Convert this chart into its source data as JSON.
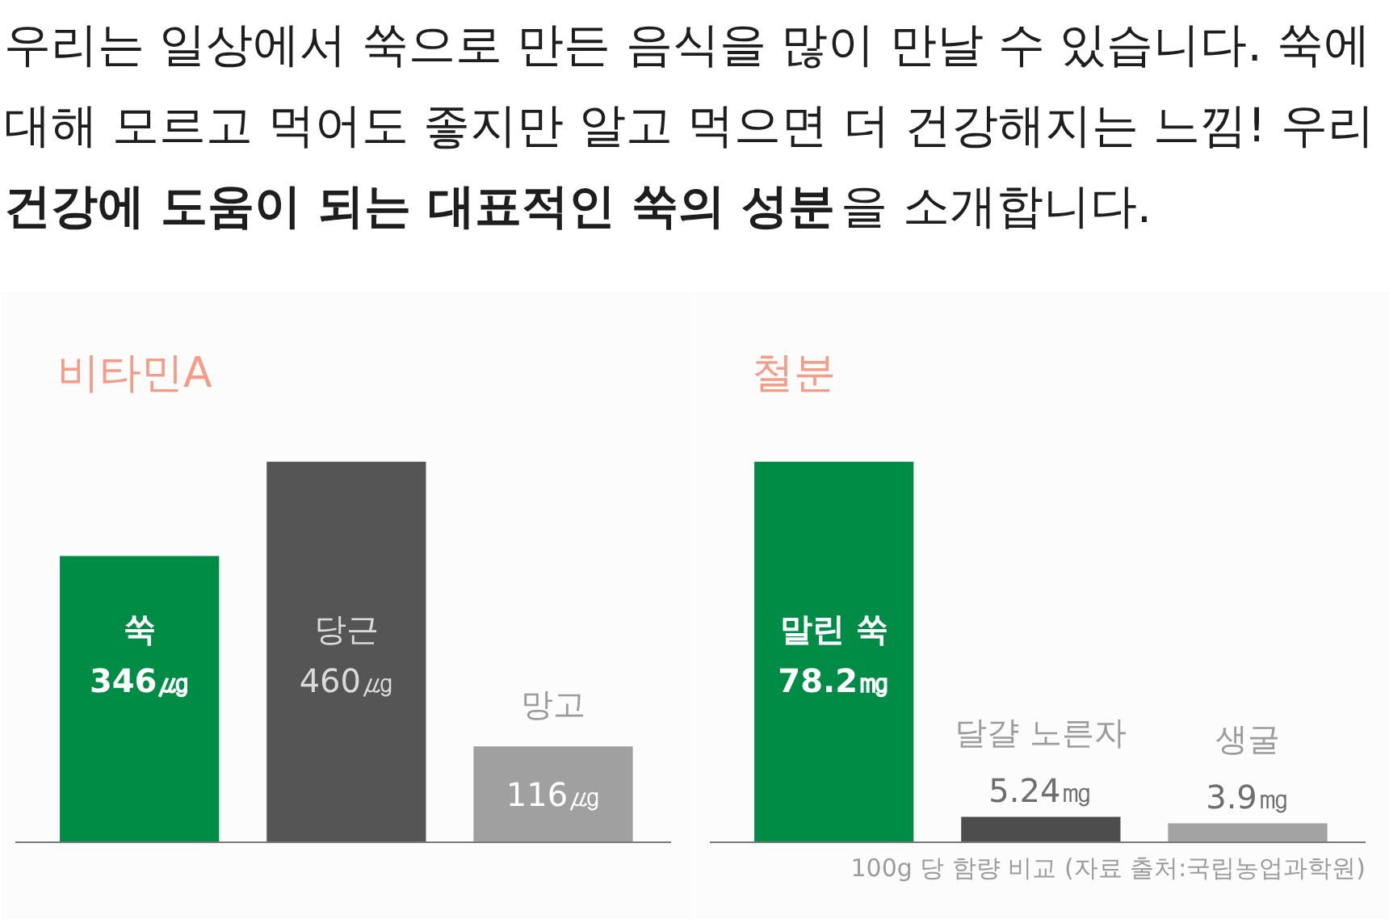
{
  "chart_data": [
    {
      "type": "other",
      "annotations": [
        "우리는 일상에서 쑥으로 만든 음식을 많이 만날 수 있습니다. 쑥에",
        "대해 모르고 먹어도 좋지만 알고 먹으면 더 건강해지는 느낌! 우리",
        "건강에 도움이 되는 대표적인 쑥의 성분",
        "을 소개합니다."
      ]
    },
    {
      "type": "bar",
      "title": "비타민A",
      "categories": [
        "쑥",
        "당근",
        "망고"
      ],
      "values": [
        346,
        460,
        116
      ],
      "colors": [
        "#008c45",
        "#555555",
        "#a0a0a0"
      ],
      "value_labels": [
        "346㎍",
        "460㎍",
        "116㎍"
      ],
      "tick_labels": false
    },
    {
      "type": "bar",
      "title": "철분",
      "categories": [
        "말린 쑥",
        "달걀 노른자",
        "생굴"
      ],
      "values": [
        78.2,
        5.24,
        3.9
      ],
      "colors": [
        "#008c45",
        "#4d4d4d",
        "#a3a3a3"
      ],
      "value_labels": [
        "78.2㎎",
        "5.24㎎",
        "3.9㎎"
      ],
      "tick_labels": false,
      "annotations": [
        "100g 당 함량 비교 (자료 출처:국립농업과학원)"
      ]
    }
  ]
}
